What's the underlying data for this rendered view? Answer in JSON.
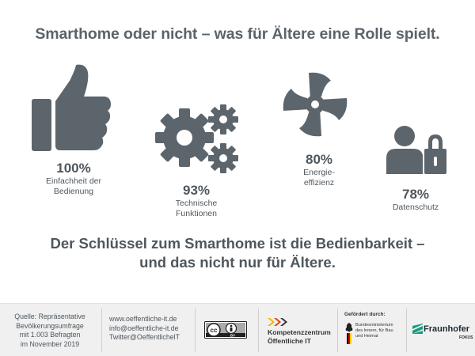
{
  "title": "Smarthome oder nicht – was für Ältere eine Rolle spielt.",
  "stats": [
    {
      "icon": "thumbs-up-icon",
      "percent": "100%",
      "label": "Einfachheit der\nBedienung"
    },
    {
      "icon": "gears-icon",
      "percent": "93%",
      "label": "Technische\nFunktionen"
    },
    {
      "icon": "fan-icon",
      "percent": "80%",
      "label": "Energie-\neffizienz"
    },
    {
      "icon": "user-lock-icon",
      "percent": "78%",
      "label": "Datenschutz"
    }
  ],
  "headline": {
    "line1": "Der Schlüssel zum Smarthome ist die Bedienbarkeit –",
    "line2": "und das nicht nur für Ältere."
  },
  "footer": {
    "source": [
      "Quelle: Repräsentative",
      "Bevölkerungsumfrage",
      "mit 1.003 Befragten",
      "im November 2019"
    ],
    "contact": [
      "www.oeffentliche-it.de",
      "info@oeffentliche-it.de",
      "Twitter@OeffentlichelT"
    ],
    "cc_badge": "BY",
    "kompetenz": [
      "Kompetenzzentrum",
      "Öffentliche IT"
    ],
    "gefoerdert": "Gefördert durch:",
    "bmi": "Bundesministerium\ndes Innern, für Bau\nund Heimat",
    "fraunhofer": "Fraunhofer",
    "fokus": "FOKUS"
  },
  "colors": {
    "icon": "#5d656c",
    "text": "#4f575e",
    "footer_bg": "#f0f0f0"
  }
}
